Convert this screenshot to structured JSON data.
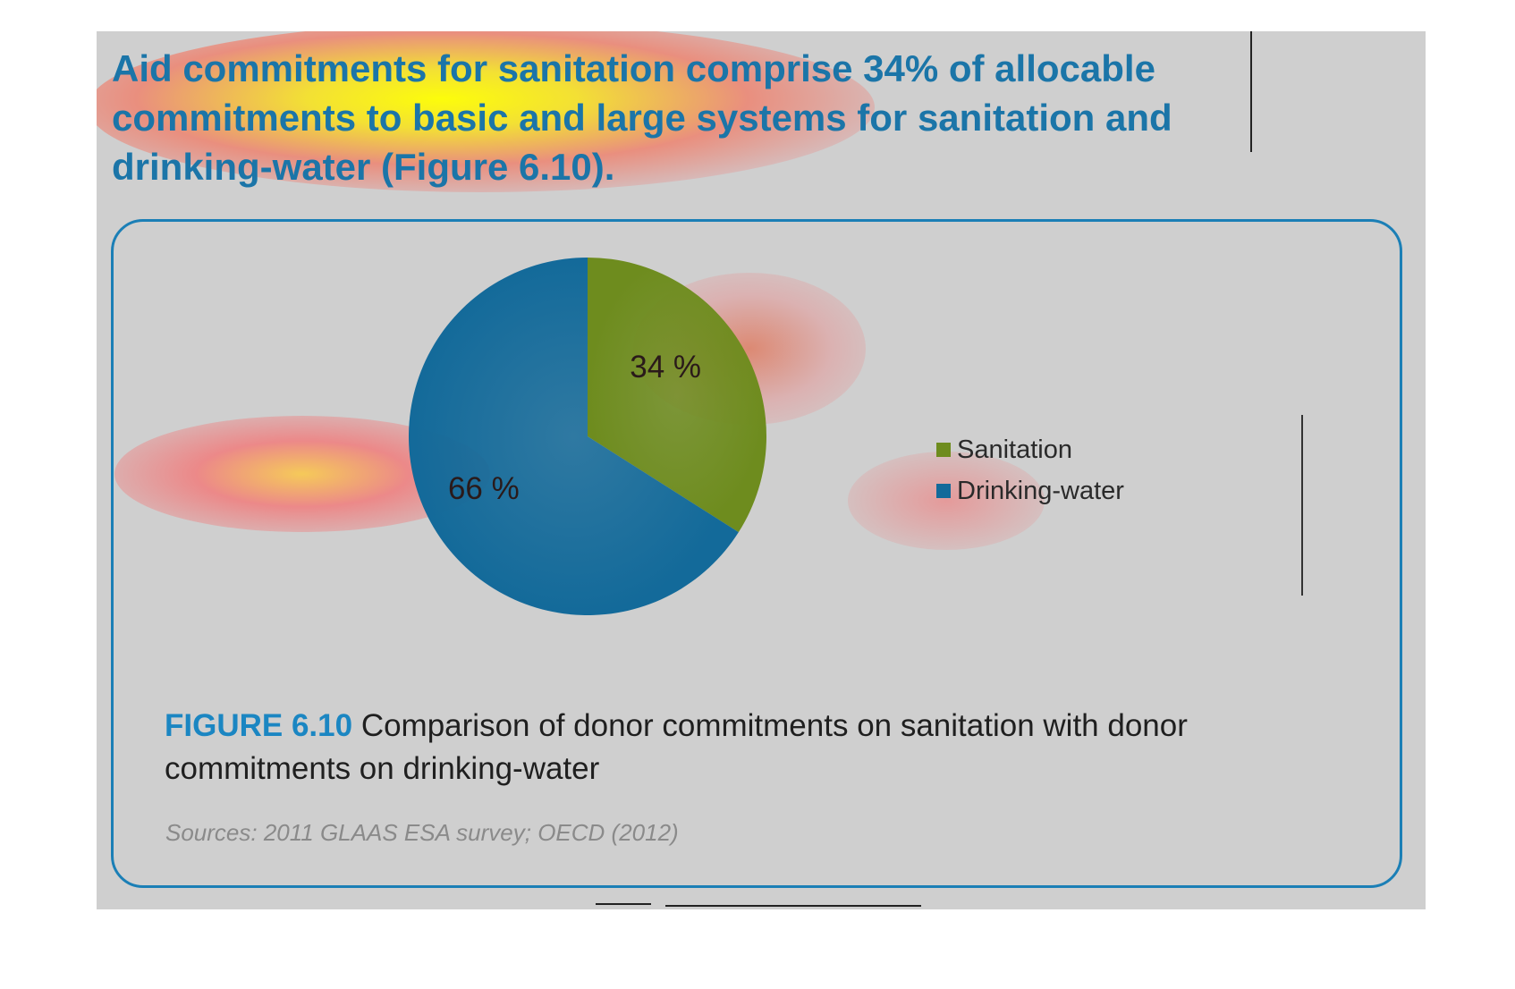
{
  "headline": "Aid commitments for sanitation comprise 34% of allocable commitments to basic and large systems for sanitation and drinking-water (Figure 6.10).",
  "figure": {
    "label": "FIGURE 6.10",
    "caption": "Comparison of donor commitments on sanitation with donor commitments on drinking-water",
    "source": "Sources: 2011 GLAAS ESA survey; OECD (2012)"
  },
  "colors": {
    "sanitation": "#6e8c1e",
    "drinking_water": "#136a9a",
    "accent": "#1b86c2",
    "page_background": "#cfcfcf"
  },
  "chart_data": {
    "type": "pie",
    "title": "",
    "categories": [
      "Sanitation",
      "Drinking-water"
    ],
    "values": [
      34,
      66
    ],
    "data_labels": [
      "34 %",
      "66 %"
    ],
    "colors": [
      "#6e8c1e",
      "#136a9a"
    ],
    "legend": {
      "placement": "right",
      "entries": [
        "Sanitation",
        "Drinking-water"
      ]
    }
  }
}
